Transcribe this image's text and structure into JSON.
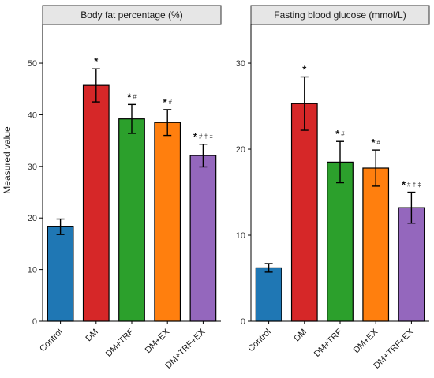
{
  "figure": {
    "ylabel": "Measured value"
  },
  "chart_data": [
    {
      "type": "bar",
      "title": "Body fat percentage (%)",
      "categories": [
        "Control",
        "DM",
        "DM+TRF",
        "DM+EX",
        "DM+TRF+EX"
      ],
      "values": [
        18.3,
        45.7,
        39.2,
        38.5,
        32.1
      ],
      "errors": [
        1.5,
        3.2,
        2.8,
        2.5,
        2.2
      ],
      "significance": [
        "",
        "*",
        "*#",
        "*#",
        "*#†‡"
      ],
      "colors": [
        "#1f77b4",
        "#d62728",
        "#2ca02c",
        "#ff7f0e",
        "#9467bd"
      ],
      "ylim": [
        0,
        57.5
      ],
      "yticks": [
        0,
        10,
        20,
        30,
        40,
        50
      ],
      "ylabel": "Measured value",
      "xlabel": ""
    },
    {
      "type": "bar",
      "title": "Fasting blood glucose (mmol/L)",
      "categories": [
        "Control",
        "DM",
        "DM+TRF",
        "DM+EX",
        "DM+TRF+EX"
      ],
      "values": [
        6.2,
        25.3,
        18.5,
        17.8,
        13.2
      ],
      "errors": [
        0.5,
        3.1,
        2.4,
        2.1,
        1.8
      ],
      "significance": [
        "",
        "*",
        "*#",
        "*#",
        "*#†‡"
      ],
      "colors": [
        "#1f77b4",
        "#d62728",
        "#2ca02c",
        "#ff7f0e",
        "#9467bd"
      ],
      "ylim": [
        0,
        34.5
      ],
      "yticks": [
        0,
        10,
        20,
        30
      ],
      "ylabel": "",
      "xlabel": ""
    }
  ]
}
